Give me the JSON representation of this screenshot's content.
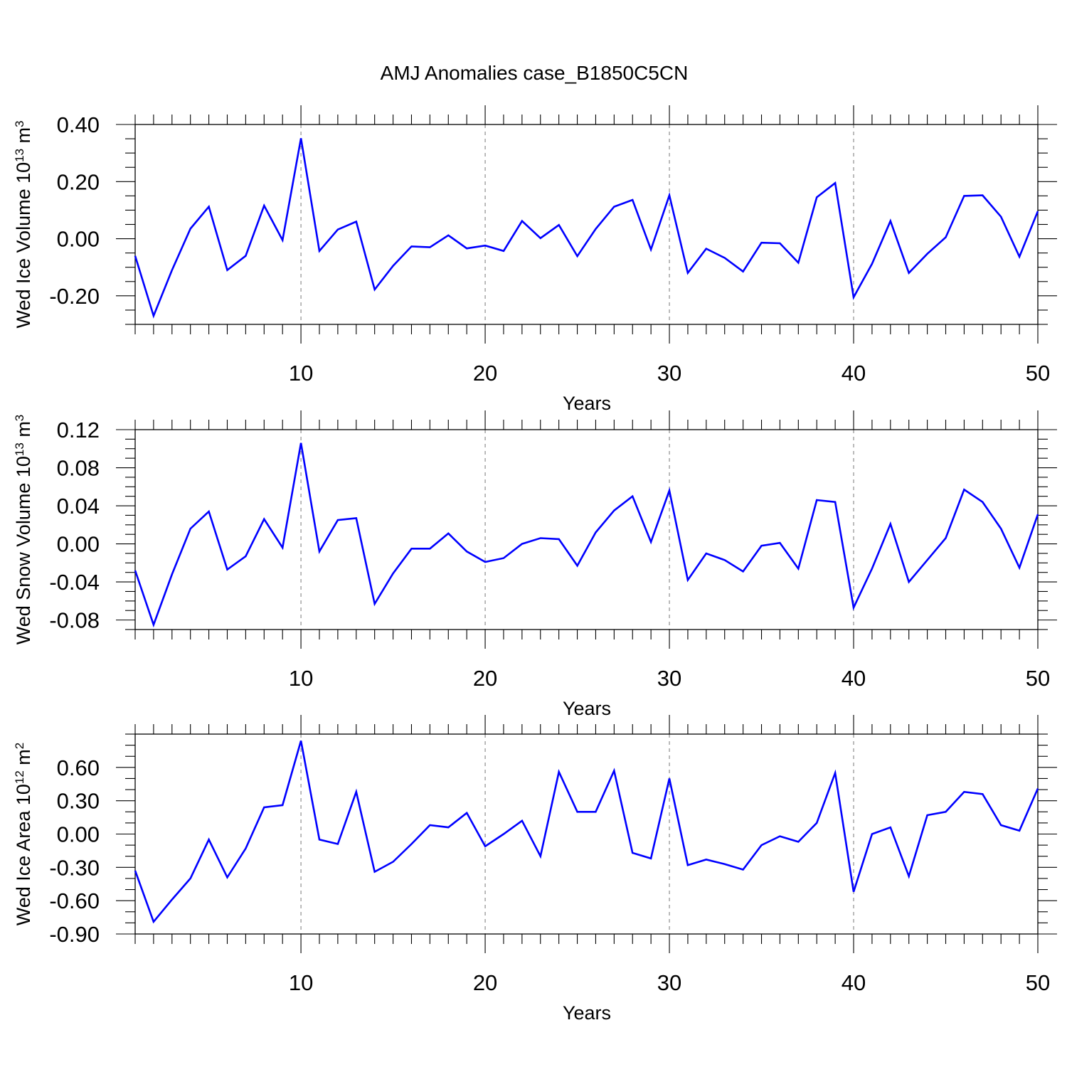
{
  "title": "AMJ Anomalies case_B1850C5CN",
  "series_color": "#0000ff",
  "chart_data": [
    {
      "type": "line",
      "name": "ice-volume",
      "ylabel_main": "Wed Ice Volume 10",
      "ylabel_exp": "13",
      "ylabel_unit": " m",
      "ylabel_unit_exp": "3",
      "xlabel": "Years",
      "xlim": [
        1,
        50
      ],
      "ylim": [
        -0.3,
        0.4
      ],
      "xticks": [
        10,
        20,
        30,
        40,
        50
      ],
      "xtick_labels": [
        "10",
        "20",
        "30",
        "40",
        "50"
      ],
      "yticks": [
        -0.2,
        0,
        0.2,
        0.4
      ],
      "ytick_labels": [
        "-0.20",
        "0.00",
        "0.20",
        "0.40"
      ],
      "grid_x": [
        10,
        20,
        30,
        40
      ],
      "x": [
        1,
        2,
        3,
        4,
        5,
        6,
        7,
        8,
        9,
        10,
        11,
        12,
        13,
        14,
        15,
        16,
        17,
        18,
        19,
        20,
        21,
        22,
        23,
        24,
        25,
        26,
        27,
        28,
        29,
        30,
        31,
        32,
        33,
        34,
        35,
        36,
        37,
        38,
        39,
        40,
        41,
        42,
        43,
        44,
        45,
        46,
        47,
        48,
        49,
        50
      ],
      "values": [
        -0.06,
        -0.27,
        -0.11,
        0.035,
        0.112,
        -0.11,
        -0.06,
        0.116,
        -0.005,
        0.352,
        -0.043,
        0.032,
        0.06,
        -0.178,
        -0.095,
        -0.027,
        -0.03,
        0.012,
        -0.034,
        -0.024,
        -0.043,
        0.062,
        0.002,
        0.048,
        -0.061,
        0.034,
        0.112,
        0.136,
        -0.038,
        0.152,
        -0.12,
        -0.035,
        -0.067,
        -0.115,
        -0.014,
        -0.016,
        -0.084,
        0.145,
        0.195,
        -0.205,
        -0.088,
        0.062,
        -0.12,
        -0.053,
        0.005,
        0.15,
        0.152,
        0.077,
        -0.063,
        0.096
      ]
    },
    {
      "type": "line",
      "name": "snow-volume",
      "ylabel_main": "Wed Snow Volume 10",
      "ylabel_exp": "13",
      "ylabel_unit": " m",
      "ylabel_unit_exp": "3",
      "xlabel": "Years",
      "xlim": [
        1,
        50
      ],
      "ylim": [
        -0.09,
        0.12
      ],
      "xticks": [
        10,
        20,
        30,
        40,
        50
      ],
      "xtick_labels": [
        "10",
        "20",
        "30",
        "40",
        "50"
      ],
      "yticks": [
        -0.08,
        -0.04,
        0,
        0.04,
        0.08,
        0.12
      ],
      "ytick_labels": [
        "-0.08",
        "-0.04",
        "0.00",
        "0.04",
        "0.08",
        "0.12"
      ],
      "grid_x": [
        10,
        20,
        30,
        40
      ],
      "x": [
        1,
        2,
        3,
        4,
        5,
        6,
        7,
        8,
        9,
        10,
        11,
        12,
        13,
        14,
        15,
        16,
        17,
        18,
        19,
        20,
        21,
        22,
        23,
        24,
        25,
        26,
        27,
        28,
        29,
        30,
        31,
        32,
        33,
        34,
        35,
        36,
        37,
        38,
        39,
        40,
        41,
        42,
        43,
        44,
        45,
        46,
        47,
        48,
        49,
        50
      ],
      "values": [
        -0.028,
        -0.085,
        -0.032,
        0.016,
        0.034,
        -0.027,
        -0.013,
        0.026,
        -0.004,
        0.106,
        -0.008,
        0.025,
        0.027,
        -0.063,
        -0.031,
        -0.005,
        -0.005,
        0.011,
        -0.008,
        -0.019,
        -0.015,
        0.0,
        0.006,
        0.005,
        -0.023,
        0.012,
        0.035,
        0.05,
        0.002,
        0.056,
        -0.038,
        -0.01,
        -0.017,
        -0.029,
        -0.002,
        0.001,
        -0.026,
        0.046,
        0.044,
        -0.067,
        -0.026,
        0.021,
        -0.04,
        -0.017,
        0.006,
        0.057,
        0.044,
        0.016,
        -0.025,
        0.031
      ]
    },
    {
      "type": "line",
      "name": "ice-area",
      "ylabel_main": "Wed Ice Area 10",
      "ylabel_exp": "12",
      "ylabel_unit": " m",
      "ylabel_unit_exp": "2",
      "xlabel": "Years",
      "xlim": [
        1,
        50
      ],
      "ylim": [
        -0.9,
        0.9
      ],
      "xticks": [
        10,
        20,
        30,
        40,
        50
      ],
      "xtick_labels": [
        "10",
        "20",
        "30",
        "40",
        "50"
      ],
      "yticks": [
        -0.9,
        -0.6,
        -0.3,
        0,
        0.3,
        0.6
      ],
      "ytick_labels": [
        "-0.90",
        "-0.60",
        "-0.30",
        "0.00",
        "0.30",
        "0.60"
      ],
      "grid_x": [
        10,
        20,
        30,
        40
      ],
      "x": [
        1,
        2,
        3,
        4,
        5,
        6,
        7,
        8,
        9,
        10,
        11,
        12,
        13,
        14,
        15,
        16,
        17,
        18,
        19,
        20,
        21,
        22,
        23,
        24,
        25,
        26,
        27,
        28,
        29,
        30,
        31,
        32,
        33,
        34,
        35,
        36,
        37,
        38,
        39,
        40,
        41,
        42,
        43,
        44,
        45,
        46,
        47,
        48,
        49,
        50
      ],
      "values": [
        -0.33,
        -0.79,
        -0.59,
        -0.4,
        -0.05,
        -0.39,
        -0.13,
        0.24,
        0.26,
        0.84,
        -0.05,
        -0.09,
        0.38,
        -0.34,
        -0.25,
        -0.09,
        0.08,
        0.06,
        0.19,
        -0.11,
        0.0,
        0.12,
        -0.2,
        0.56,
        0.2,
        0.2,
        0.57,
        -0.17,
        -0.22,
        0.5,
        -0.28,
        -0.23,
        -0.27,
        -0.32,
        -0.1,
        -0.02,
        -0.07,
        0.1,
        0.55,
        -0.52,
        0.0,
        0.06,
        -0.38,
        0.17,
        0.2,
        0.38,
        0.36,
        0.08,
        0.03,
        0.41
      ]
    }
  ]
}
